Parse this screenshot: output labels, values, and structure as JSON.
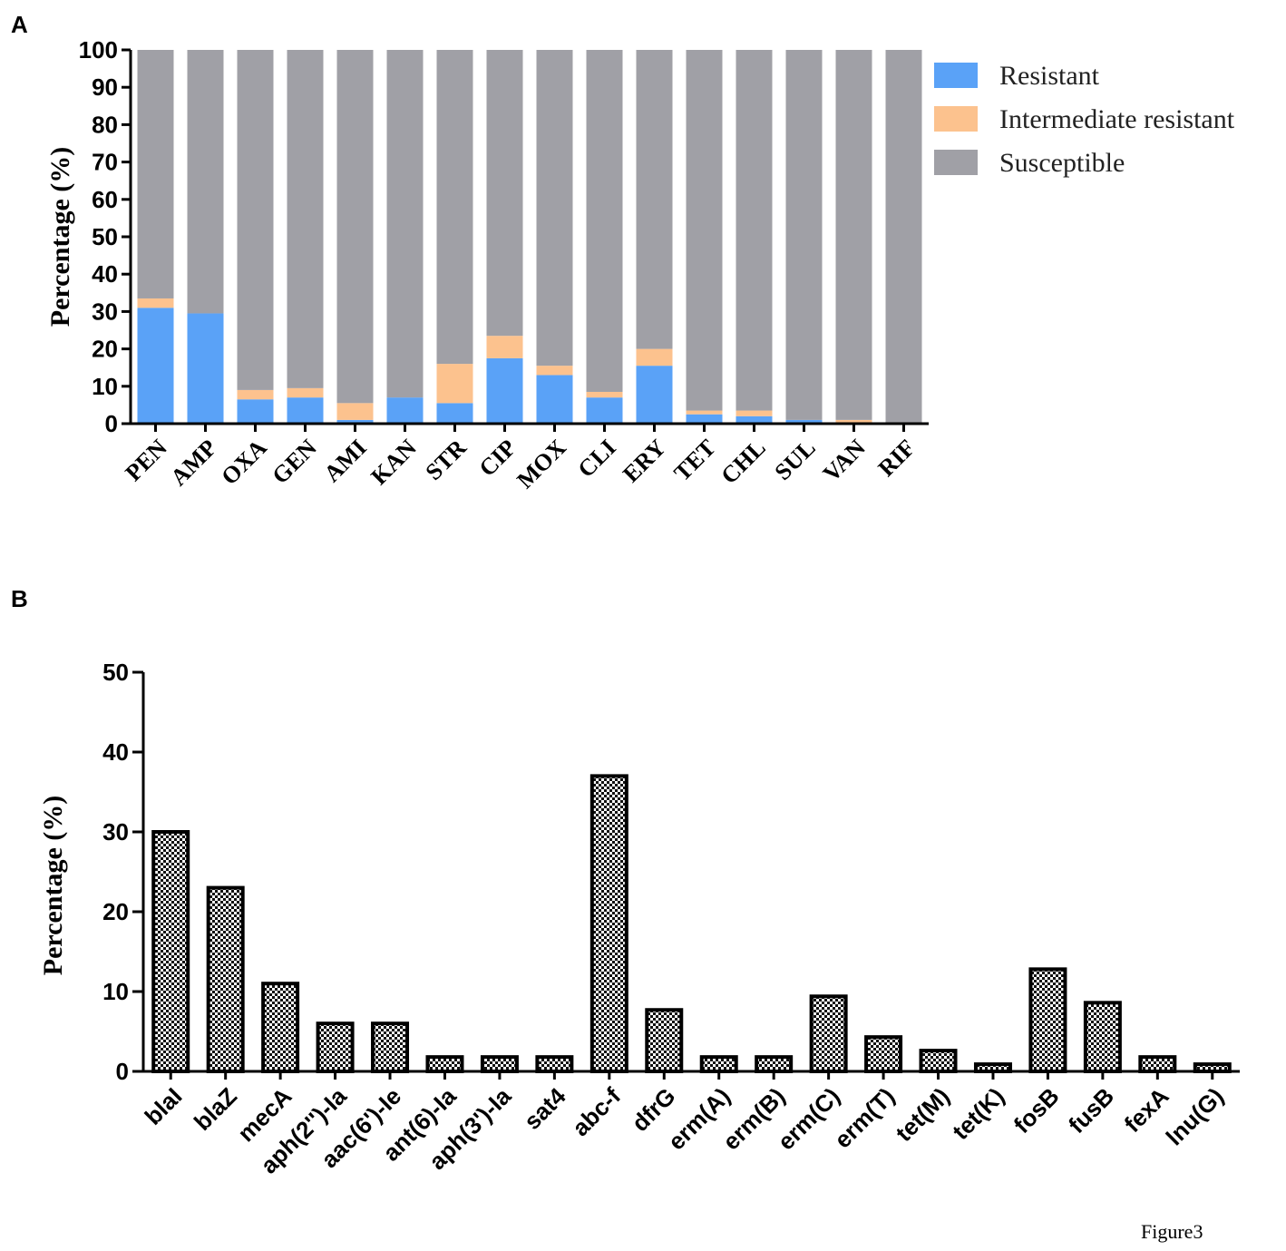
{
  "chart_data": [
    {
      "panel": "A",
      "type": "bar",
      "stacked": true,
      "ylabel": "Percentage (%)",
      "ylim": [
        0,
        100
      ],
      "yticks": [
        0,
        10,
        20,
        30,
        40,
        50,
        60,
        70,
        80,
        90,
        100
      ],
      "categories": [
        "PEN",
        "AMP",
        "OXA",
        "GEN",
        "AMI",
        "KAN",
        "STR",
        "CIP",
        "MOX",
        "CLI",
        "ERY",
        "TET",
        "CHL",
        "SUL",
        "VAN",
        "RIF"
      ],
      "series": [
        {
          "name": "Resistant",
          "color": "#5aa2f7",
          "values": [
            31,
            29.5,
            6.5,
            7,
            1,
            7,
            5.5,
            17.5,
            13,
            7,
            15.5,
            2.5,
            2,
            1,
            0,
            0
          ]
        },
        {
          "name": "Intermediate resistant",
          "color": "#fcc28e",
          "values": [
            2.5,
            0,
            2.5,
            2.5,
            4.5,
            0,
            10.5,
            6,
            2.5,
            1.5,
            4.5,
            1,
            1.5,
            0,
            1,
            0
          ]
        },
        {
          "name": "Susceptible",
          "color": "#a0a0a6",
          "values": [
            66.5,
            70.5,
            91,
            90.5,
            94.5,
            93,
            84,
            76.5,
            84.5,
            91.5,
            80,
            96.5,
            96.5,
            99,
            99,
            100
          ]
        }
      ],
      "legend": [
        "Resistant",
        "Intermediate resistant",
        "Susceptible"
      ],
      "legend_position": "top-right"
    },
    {
      "panel": "B",
      "type": "bar",
      "ylabel": "Percentage (%)",
      "ylim": [
        0,
        50
      ],
      "yticks": [
        0,
        10,
        20,
        30,
        40,
        50
      ],
      "categories": [
        "blaI",
        "blaZ",
        "mecA",
        "aph(2'')-Ia",
        "aac(6')-Ie",
        "ant(6)-Ia",
        "aph(3')-Ia",
        "sat4",
        "abc-f",
        "dfrG",
        "erm(A)",
        "erm(B)",
        "erm(C)",
        "erm(T)",
        "tet(M)",
        "tet(K)",
        "fosB",
        "fusB",
        "fexA",
        "lnu(G)"
      ],
      "values": [
        30,
        23,
        11,
        6,
        6,
        1.8,
        1.8,
        1.8,
        37,
        7.7,
        1.8,
        1.8,
        9.4,
        4.3,
        2.6,
        0.9,
        12.8,
        8.6,
        1.8,
        0.9
      ]
    }
  ],
  "labels": {
    "panel_a": "A",
    "panel_b": "B",
    "figure_caption": "Figure3"
  }
}
